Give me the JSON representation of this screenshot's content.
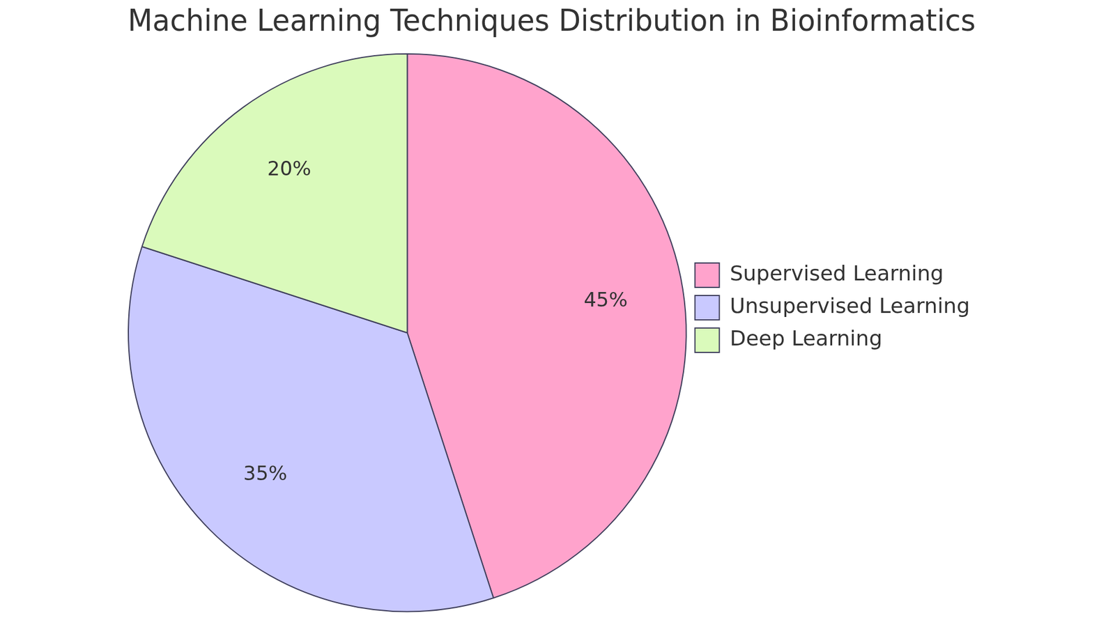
{
  "chart_data": {
    "type": "pie",
    "title": "Machine Learning Techniques Distribution in Bioinformatics",
    "categories": [
      "Supervised Learning",
      "Unsupervised Learning",
      "Deep Learning"
    ],
    "values": [
      45,
      35,
      20
    ],
    "value_labels": [
      "45%",
      "35%",
      "20%"
    ],
    "colors": [
      "#ffa3cc",
      "#c9c9ff",
      "#dafabb"
    ],
    "data_labels": true,
    "legend": "right"
  }
}
